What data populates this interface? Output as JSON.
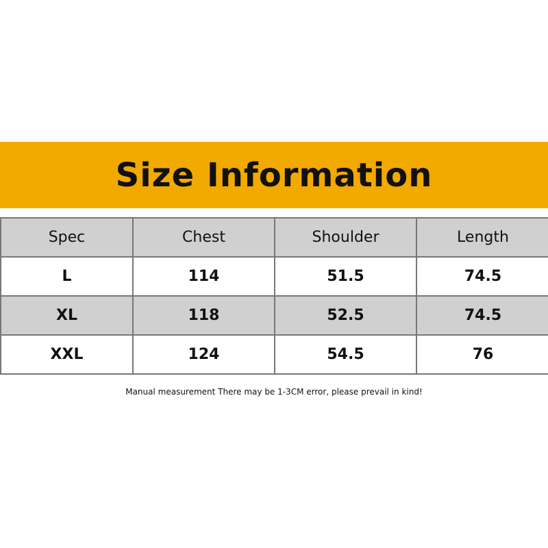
{
  "title": "Size Information",
  "colors": {
    "banner": "#F2A900",
    "row_gray": "#D0D0D0",
    "border": "#777777"
  },
  "table": {
    "headers": [
      "Spec",
      "Chest",
      "Shoulder",
      "Length"
    ],
    "rows": [
      [
        "L",
        "114",
        "51.5",
        "74.5"
      ],
      [
        "XL",
        "118",
        "52.5",
        "74.5"
      ],
      [
        "XXL",
        "124",
        "54.5",
        "76"
      ]
    ]
  },
  "note": "Manual measurement There may be 1-3CM error, please prevail in kind!"
}
